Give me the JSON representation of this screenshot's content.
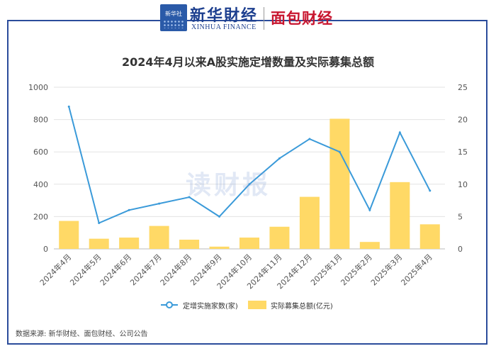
{
  "header": {
    "xinhua_cn": "新华財经",
    "xinhua_en": "XINHUA FINANCE",
    "xinhua_badge": "新华社",
    "mianbao": "面包财经"
  },
  "watermark": "读财报",
  "source": "数据来源: 新华财经、面包财经、公司公告",
  "colors": {
    "bar": "#ffd966",
    "line": "#3a9ad9",
    "border": "#2b4c9b"
  },
  "chart_data": {
    "type": "bar",
    "title": "2024年4月以来A股实施定增数量及实际募集总额",
    "categories": [
      "2024年4月",
      "2024年5月",
      "2024年6月",
      "2024年7月",
      "2024年8月",
      "2024年9月",
      "2024年10月",
      "2024年11月",
      "2024年12月",
      "2025年1月",
      "2025年2月",
      "2025年3月",
      "2025年4月"
    ],
    "series": [
      {
        "name": "实际募集总额(亿元)",
        "type": "bar",
        "axis": "left",
        "values": [
          173,
          63,
          70,
          142,
          57,
          14,
          70,
          137,
          322,
          805,
          43,
          413,
          152
        ]
      },
      {
        "name": "定增实施家数(家)",
        "type": "line",
        "axis": "right",
        "values": [
          22,
          4,
          6,
          7,
          8,
          5,
          10,
          14,
          17,
          15,
          6,
          18,
          9
        ]
      }
    ],
    "y_left": {
      "ylim": [
        0,
        1000
      ],
      "ticks": [
        0,
        200,
        400,
        600,
        800,
        1000
      ]
    },
    "y_right": {
      "ylim": [
        0,
        25
      ],
      "ticks": [
        0,
        5,
        10,
        15,
        20,
        25
      ]
    },
    "grid": true,
    "legend": "bottom"
  }
}
